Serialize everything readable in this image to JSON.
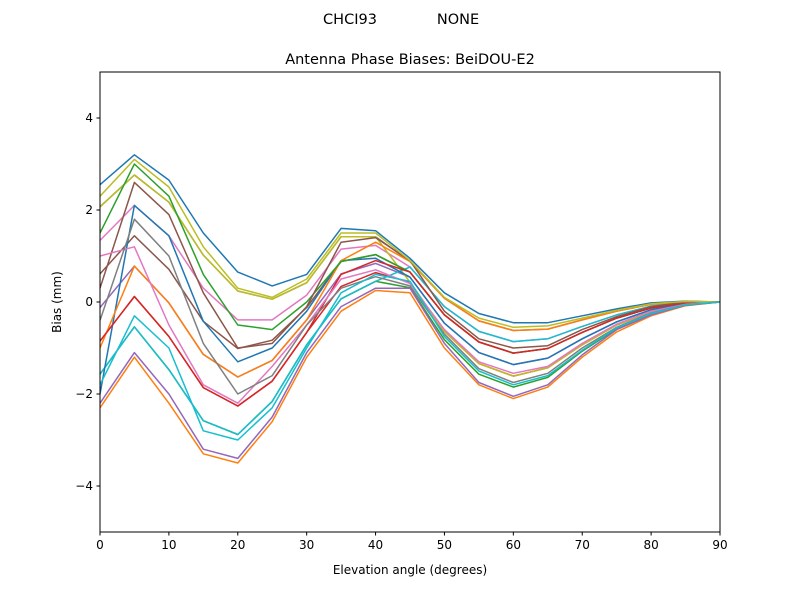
{
  "suptitle_station": "CHCI93",
  "suptitle_model": "NONE",
  "chart_data": {
    "type": "line",
    "title": "Antenna Phase Biases: BeiDOU-E2",
    "xlabel": "Elevation angle (degrees)",
    "ylabel": "Bias (mm)",
    "xlim": [
      0,
      90
    ],
    "ylim": [
      -5,
      5
    ],
    "xticks": [
      0,
      10,
      20,
      30,
      40,
      50,
      60,
      70,
      80,
      90
    ],
    "yticks": [
      -4,
      -2,
      0,
      2,
      4
    ],
    "ytick_labels": [
      "−4",
      "−2",
      "0",
      "2",
      "4"
    ],
    "grid": false,
    "colors": [
      "#1f77b4",
      "#ff7f0e",
      "#2ca02c",
      "#d62728",
      "#9467bd",
      "#8c564b",
      "#e377c2",
      "#7f7f7f",
      "#bcbd22",
      "#17becf"
    ],
    "x": [
      0,
      5,
      10,
      15,
      20,
      25,
      30,
      35,
      40,
      45,
      50,
      55,
      60,
      65,
      70,
      75,
      80,
      85,
      90
    ],
    "series": [
      {
        "values": [
          2.55,
          3.2,
          2.65,
          1.5,
          0.65,
          0.35,
          0.6,
          1.6,
          1.55,
          0.95,
          0.2,
          -0.25,
          -0.45,
          -0.45,
          -0.3,
          -0.15,
          -0.02,
          0.02,
          0
        ]
      },
      {
        "values": [
          -2.3,
          -1.2,
          -2.2,
          -3.3,
          -3.5,
          -2.6,
          -1.2,
          -0.2,
          0.25,
          0.2,
          -1.0,
          -1.8,
          -2.1,
          -1.85,
          -1.2,
          -0.65,
          -0.3,
          -0.08,
          0
        ]
      },
      {
        "values": [
          -1.57,
          -0.54,
          -1.47,
          -2.58,
          -2.88,
          -2.16,
          -0.93,
          0.07,
          0.45,
          0.31,
          -0.82,
          -1.57,
          -1.85,
          -1.64,
          -1.07,
          -0.58,
          -0.26,
          -0.07,
          0
        ]
      },
      {
        "values": [
          -0.85,
          0.12,
          -0.75,
          -1.86,
          -2.26,
          -1.72,
          -0.66,
          0.34,
          0.64,
          0.43,
          -0.64,
          -1.34,
          -1.61,
          -1.43,
          -0.93,
          -0.5,
          -0.22,
          -0.05,
          0
        ]
      },
      {
        "values": [
          -0.12,
          0.78,
          -0.02,
          -1.14,
          -1.63,
          -1.27,
          -0.39,
          0.61,
          0.84,
          0.54,
          -0.46,
          -1.1,
          -1.36,
          -1.22,
          -0.8,
          -0.43,
          -0.17,
          -0.04,
          0
        ]
      },
      {
        "values": [
          0.61,
          1.44,
          0.71,
          -0.42,
          -1.01,
          -0.83,
          -0.12,
          0.88,
          1.03,
          0.65,
          -0.28,
          -0.87,
          -1.11,
          -1.01,
          -0.66,
          -0.35,
          -0.13,
          -0.02,
          0
        ]
      },
      {
        "values": [
          1.34,
          2.1,
          1.44,
          0.3,
          -0.39,
          -0.39,
          0.15,
          1.15,
          1.23,
          0.76,
          -0.1,
          -0.64,
          -0.86,
          -0.8,
          -0.53,
          -0.28,
          -0.09,
          0,
          0
        ]
      },
      {
        "values": [
          2.07,
          2.76,
          2.17,
          1.02,
          0.24,
          0.06,
          0.42,
          1.42,
          1.42,
          0.88,
          0.08,
          -0.41,
          -0.62,
          -0.59,
          -0.39,
          -0.2,
          -0.05,
          0.01,
          0
        ]
      },
      {
        "values": [
          2.07,
          2.76,
          2.17,
          1.02,
          0.24,
          0.06,
          0.42,
          1.42,
          1.42,
          0.43,
          -0.64,
          -1.34,
          -1.61,
          -1.43,
          -0.93,
          -0.5,
          -0.22,
          -0.05,
          0
        ]
      },
      {
        "values": [
          -1.57,
          -0.54,
          -1.47,
          -2.58,
          -2.88,
          -2.16,
          -0.93,
          0.07,
          0.45,
          0.76,
          -0.1,
          -0.64,
          -0.86,
          -0.8,
          -0.53,
          -0.28,
          -0.09,
          0,
          0
        ]
      },
      {
        "values": [
          -2.0,
          2.1,
          1.44,
          -0.42,
          -1.3,
          -1.0,
          -0.2,
          0.9,
          0.95,
          0.54,
          -0.46,
          -1.1,
          -1.36,
          -1.22,
          -0.8,
          -0.43,
          -0.17,
          -0.04,
          0
        ]
      },
      {
        "values": [
          -1.0,
          0.78,
          -0.02,
          -1.14,
          -1.63,
          -1.27,
          -0.39,
          0.9,
          1.3,
          0.88,
          0.08,
          -0.41,
          -0.62,
          -0.59,
          -0.39,
          -0.2,
          -0.05,
          0.01,
          0
        ]
      },
      {
        "values": [
          1.5,
          3.0,
          2.3,
          0.6,
          -0.5,
          -0.6,
          0.0,
          0.88,
          1.03,
          0.65,
          -0.28,
          -0.87,
          -1.11,
          -1.01,
          -0.66,
          -0.35,
          -0.13,
          -0.02,
          0
        ]
      },
      {
        "values": [
          -0.85,
          0.12,
          -0.75,
          -1.86,
          -2.26,
          -1.72,
          -0.66,
          0.6,
          0.9,
          0.65,
          -0.28,
          -0.87,
          -1.11,
          -1.01,
          -0.66,
          -0.35,
          -0.13,
          -0.02,
          0
        ]
      },
      {
        "values": [
          -2.2,
          -1.1,
          -2.0,
          -3.2,
          -3.4,
          -2.5,
          -1.1,
          -0.1,
          0.3,
          0.3,
          -0.9,
          -1.75,
          -2.05,
          -1.8,
          -1.15,
          -0.6,
          -0.28,
          -0.07,
          0
        ]
      },
      {
        "values": [
          0.3,
          2.6,
          1.9,
          0.2,
          -1.0,
          -0.9,
          -0.1,
          1.3,
          1.4,
          0.9,
          -0.2,
          -0.8,
          -1.0,
          -0.95,
          -0.6,
          -0.32,
          -0.1,
          0,
          0
        ]
      },
      {
        "values": [
          1.0,
          1.2,
          -0.5,
          -1.8,
          -2.2,
          -1.4,
          -0.5,
          0.5,
          0.7,
          0.4,
          -0.6,
          -1.3,
          -1.55,
          -1.4,
          -0.9,
          -0.48,
          -0.2,
          -0.05,
          0
        ]
      },
      {
        "values": [
          -0.4,
          1.8,
          1.0,
          -0.9,
          -2.0,
          -1.6,
          -0.5,
          0.3,
          0.55,
          0.35,
          -0.7,
          -1.45,
          -1.75,
          -1.55,
          -1.0,
          -0.55,
          -0.24,
          -0.06,
          0
        ]
      },
      {
        "values": [
          2.3,
          3.1,
          2.5,
          1.2,
          0.3,
          0.1,
          0.5,
          1.5,
          1.5,
          0.9,
          0.1,
          -0.35,
          -0.55,
          -0.52,
          -0.35,
          -0.18,
          -0.04,
          0.01,
          0
        ]
      },
      {
        "values": [
          -1.8,
          -0.3,
          -1.0,
          -2.8,
          -3.0,
          -2.3,
          -1.0,
          0.2,
          0.6,
          0.45,
          -0.75,
          -1.5,
          -1.8,
          -1.6,
          -1.05,
          -0.56,
          -0.25,
          -0.06,
          0
        ]
      }
    ]
  }
}
